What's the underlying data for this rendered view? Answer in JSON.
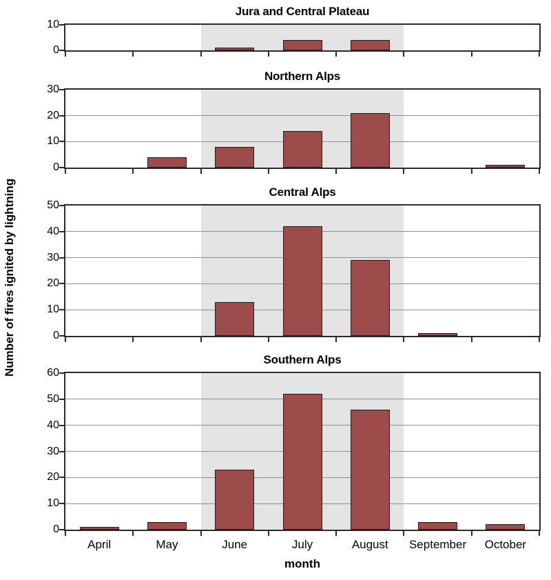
{
  "figure": {
    "ylabel": "Number of fires ignited by lightning",
    "xlabel": "month"
  },
  "chart_data": {
    "type": "bar",
    "categories": [
      "April",
      "May",
      "June",
      "July",
      "August",
      "September",
      "October"
    ],
    "xlabel": "month",
    "ylabel": "Number of fires ignited by lightning",
    "shaded_x_range": [
      "June",
      "August"
    ],
    "legend": "none",
    "grid": "horizontal",
    "panels": [
      {
        "title": "Jura and Central Plateau",
        "ylim": [
          0,
          10
        ],
        "yticks": [
          0,
          10
        ],
        "values": [
          0,
          0,
          1,
          4,
          4,
          0,
          0
        ]
      },
      {
        "title": "Northern Alps",
        "ylim": [
          0,
          30
        ],
        "yticks": [
          0,
          10,
          20,
          30
        ],
        "values": [
          0,
          4,
          8,
          14,
          21,
          0,
          1
        ]
      },
      {
        "title": "Central Alps",
        "ylim": [
          0,
          50
        ],
        "yticks": [
          0,
          10,
          20,
          30,
          40,
          50
        ],
        "values": [
          0,
          0,
          13,
          42,
          29,
          1,
          0
        ]
      },
      {
        "title": "Southern Alps",
        "ylim": [
          0,
          60
        ],
        "yticks": [
          0,
          10,
          20,
          30,
          40,
          50,
          60
        ],
        "values": [
          1,
          3,
          23,
          52,
          46,
          3,
          2
        ]
      }
    ],
    "colors": {
      "bar_fill": "#9d4b4b",
      "bar_border": "#1f1f1f",
      "shaded_band": "#e4e4e4",
      "gridline": "#8f8f8f",
      "frame": "#2a2a2a",
      "text": "#000000"
    }
  }
}
